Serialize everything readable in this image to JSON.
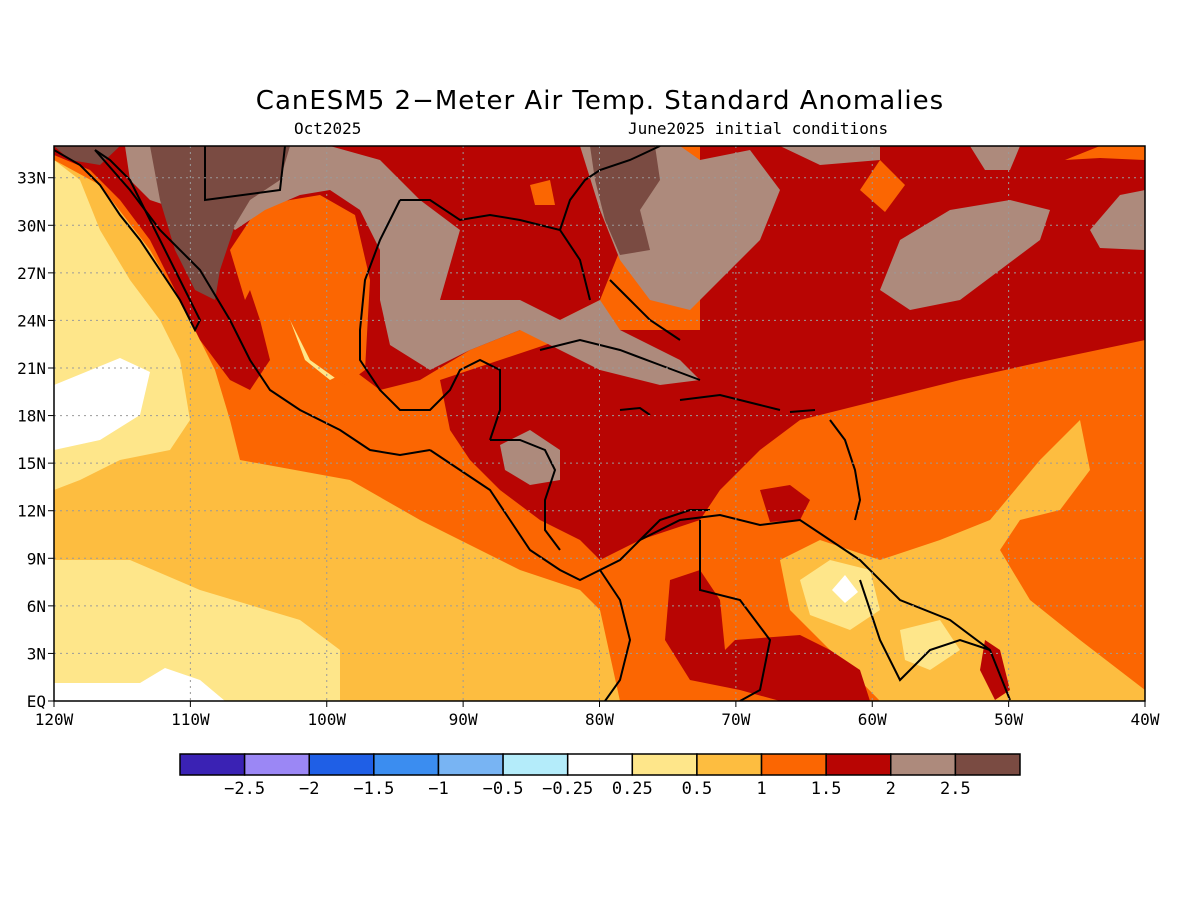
{
  "title": "CanESM5 2−Meter Air Temp. Standard Anomalies",
  "subtitle_left": "Oct2025",
  "subtitle_right": "June2025 initial conditions",
  "axes": {
    "lat_labels": [
      "33N",
      "30N",
      "27N",
      "24N",
      "21N",
      "18N",
      "15N",
      "12N",
      "9N",
      "6N",
      "3N",
      "EQ"
    ],
    "lon_labels": [
      "120W",
      "110W",
      "100W",
      "90W",
      "80W",
      "70W",
      "60W",
      "50W",
      "40W"
    ],
    "lat_range": [
      0,
      35
    ],
    "lon_range": [
      -120,
      -40
    ],
    "grid": true
  },
  "colorbar": {
    "colors": [
      "#3a22b4",
      "#9b87f5",
      "#1f5fe6",
      "#3b8df0",
      "#78b4f3",
      "#b4ecfa",
      "#ffffff",
      "#fee68a",
      "#fdbd40",
      "#fb6602",
      "#b80503",
      "#ad8a7c",
      "#7a4b42"
    ],
    "labels": [
      "−2.5",
      "−2",
      "−1.5",
      "−1",
      "−0.5",
      "−0.25",
      "0.25",
      "0.5",
      "1",
      "1.5",
      "2",
      "2.5"
    ]
  },
  "map_colors": {
    "anom_0": "#ffffff",
    "anom_025": "#fee68a",
    "anom_05": "#fdbd40",
    "anom_1": "#fb6602",
    "anom_15": "#b80503",
    "anom_2": "#ad8a7c",
    "anom_25": "#7a4b42"
  }
}
